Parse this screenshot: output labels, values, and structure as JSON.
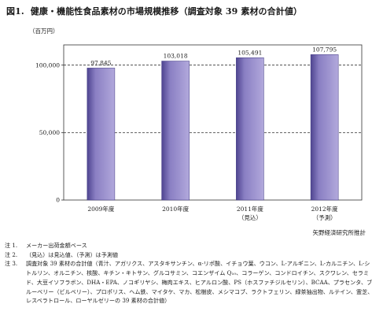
{
  "title": {
    "prefix": "図1.",
    "text": "健康・機能性食品素材の市場規模推移（調査対象 39 素材の合計値）"
  },
  "unit_label": "（百万円）",
  "source": "矢野経済研究所推計",
  "notes": [
    {
      "label": "注 1.",
      "text": "メーカー出荷金額ベース"
    },
    {
      "label": "注 2.",
      "text": "（見込）は見込値、（予測）は予測値"
    },
    {
      "label": "注 3.",
      "text": "調査対象 39 素材の合計値（青汁、アガリクス、アスタキサンチン、α-リポ酸、イチョウ葉、ウコン、L-アルギニン、L-カルニチン、L-シトルリン、オルニチン、核酸、キチン・キトサン、グルコサミン、コエンザイム Q₁₀、コラーゲン、コンドロイチン、スクワレン、セラミド、大豆イソフラボン、DHA・EPA、ノコギリヤシ、梅肉エキス、ヒアルロン酸、PS（ホスファチジルセリン）、BCAA、プラセンタ、ブルーベリー（ビルベリー）、プロポリス、ヘム鉄、マイタケ、マカ、松樹皮、メシマコブ、ラクトフェリン、緑茶抽出物、ルテイン、霊芝、レスベラトロール、ローヤルゼリーの 39 素材の合計値）"
    }
  ],
  "chart_data": {
    "type": "bar",
    "title": "健康・機能性食品素材の市場規模推移（調査対象 39 素材の合計値）",
    "ylabel": "（百万円）",
    "categories": [
      "2009年度",
      "2010年度",
      "2011年度",
      "2012年度"
    ],
    "category_sublabels": [
      "",
      "",
      "（見込）",
      "（予測）"
    ],
    "values": [
      97845,
      103018,
      105491,
      107795
    ],
    "value_labels": [
      "97,845",
      "103,018",
      "105,491",
      "107,795"
    ],
    "ylim": [
      0,
      115000
    ],
    "y_ticks": [
      0,
      50000,
      100000
    ],
    "y_tick_labels": [
      "0",
      "50,000",
      "100,000"
    ],
    "dashed_gridlines": [
      50000,
      100000
    ],
    "legend": false,
    "colors": {
      "bar": "#8a7fc3",
      "bar_dark": "#4e4490",
      "bar_light": "#b2a9dc"
    }
  }
}
